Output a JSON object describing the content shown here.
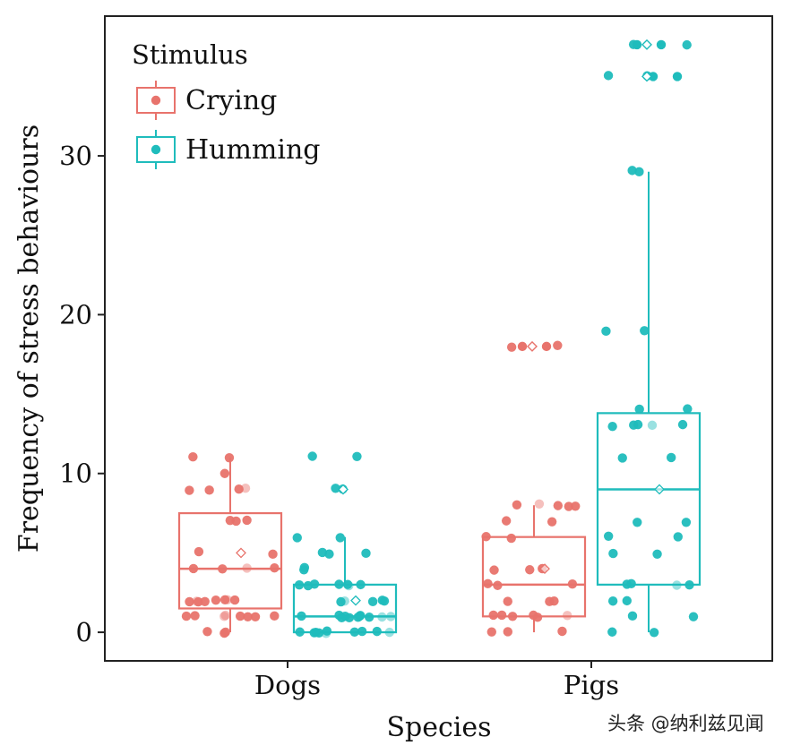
{
  "chart_data": {
    "type": "box",
    "xlabel": "Species",
    "ylabel": "Frequency of stress behaviours",
    "ylim": [
      -1.8,
      38.8
    ],
    "yticks": [
      0,
      10,
      20,
      30
    ],
    "categories": [
      "Dogs",
      "Pigs"
    ],
    "legend": {
      "title": "Stimulus",
      "position": "top-left",
      "entries": [
        "Crying",
        "Humming"
      ]
    },
    "grid": false,
    "series": [
      {
        "name": "Crying",
        "color": "#e8736c",
        "boxes": [
          {
            "category": "Dogs",
            "q1": 1.5,
            "median": 4,
            "q3": 7.5,
            "whisker_low": 0,
            "whisker_high": 11,
            "mean": 5,
            "points": [
              11,
              11,
              10,
              9,
              9,
              9,
              9,
              7,
              7,
              7,
              5,
              5,
              4,
              4,
              4,
              4,
              2,
              2,
              2,
              2,
              2,
              2,
              2,
              2,
              1,
              1,
              1,
              1,
              1,
              1,
              1,
              1,
              0,
              0,
              0
            ]
          },
          {
            "category": "Pigs",
            "q1": 1,
            "median": 3,
            "q3": 6,
            "whisker_low": 0,
            "whisker_high": 8,
            "mean": 4,
            "points": [
              18,
              18,
              8,
              8,
              8,
              8,
              8,
              7,
              7,
              6,
              6,
              4,
              4,
              4,
              4,
              3,
              3,
              3,
              2,
              2,
              2,
              1,
              1,
              1,
              1,
              1,
              1,
              0,
              0,
              0
            ]
          }
        ],
        "outliers": [
          {
            "category": "Pigs",
            "values": [
              18,
              18
            ]
          }
        ],
        "mean_outside": [
          {
            "category": "Pigs",
            "value": 18
          }
        ]
      },
      {
        "name": "Humming",
        "color": "#1fbcbc",
        "boxes": [
          {
            "category": "Dogs",
            "q1": 0,
            "median": 1,
            "q3": 3,
            "whisker_low": 0,
            "whisker_high": 6,
            "mean": 2,
            "points": [
              11,
              11,
              9,
              9,
              6,
              6,
              5,
              5,
              5,
              4,
              4,
              3,
              3,
              3,
              3,
              3,
              3,
              3,
              2,
              2,
              2,
              2,
              2,
              1,
              1,
              1,
              1,
              1,
              1,
              1,
              1,
              1,
              1,
              1,
              0,
              0,
              0,
              0,
              0,
              0,
              0,
              0,
              0,
              0
            ]
          },
          {
            "category": "Pigs",
            "q1": 3,
            "median": 9,
            "q3": 13.8,
            "whisker_low": 0,
            "whisker_high": 29,
            "mean": 9,
            "points": [
              37,
              37,
              35,
              35,
              29,
              29,
              19,
              19,
              14,
              14,
              13,
              13,
              13,
              13,
              13,
              11,
              11,
              7,
              7,
              6,
              6,
              5,
              5,
              3,
              3,
              3,
              3,
              2,
              2,
              1,
              1,
              0,
              0
            ]
          }
        ],
        "outliers": [
          {
            "category": "Pigs",
            "values": [
              37,
              37,
              35,
              35
            ]
          }
        ],
        "mean_outside": [
          {
            "category": "Dogs",
            "value": 9
          },
          {
            "category": "Pigs",
            "value": 37
          },
          {
            "category": "Pigs",
            "value": 35
          }
        ]
      }
    ]
  },
  "watermark": "头条 @纳利兹见闻"
}
